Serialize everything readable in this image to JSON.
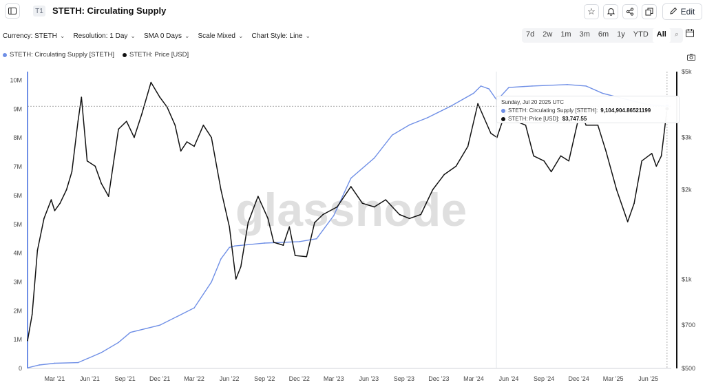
{
  "header": {
    "tab_badge": "T1",
    "title": "STETH: Circulating Supply",
    "edit_label": "Edit",
    "sidebar_toggle_icon": "sidebar-toggle-icon",
    "star_icon": "star-icon",
    "bell_icon": "bell-icon",
    "share_icon": "share-icon",
    "copy_icon": "copy-icon",
    "edit_icon": "pencil-icon"
  },
  "controls": {
    "currency": "Currency: STETH",
    "resolution": "Resolution: 1 Day",
    "sma": "SMA 0 Days",
    "scale": "Scale Mixed",
    "chart_style": "Chart Style: Line"
  },
  "ranges": [
    "7d",
    "2w",
    "1m",
    "3m",
    "6m",
    "1y",
    "YTD",
    "All"
  ],
  "active_range": "All",
  "colors": {
    "supply": "#6f8fe6",
    "price": "#111111",
    "watermark": "#d9d9d9"
  },
  "watermark": "glassnode",
  "tooltip": {
    "date": "Sunday, Jul 20 2025 UTC",
    "supply_label": "STETH: Circulating Supply [STETH]:",
    "supply_value": "9,104,904.86521199",
    "price_label": "STETH: Price [USD]:",
    "price_value": "$3,747.55"
  },
  "chart_data": {
    "type": "line",
    "series": [
      {
        "name": "STETH: Circulating Supply [STETH]",
        "axis": "left",
        "color": "#6f8fe6",
        "x": [
          "2020-12-20",
          "2021-01-20",
          "2021-03-01",
          "2021-05-01",
          "2021-07-01",
          "2021-08-15",
          "2021-09-15",
          "2021-12-01",
          "2022-01-15",
          "2022-03-01",
          "2022-04-15",
          "2022-05-10",
          "2022-06-01",
          "2022-06-15",
          "2022-09-01",
          "2022-12-01",
          "2023-01-15",
          "2023-03-01",
          "2023-04-15",
          "2023-06-15",
          "2023-08-01",
          "2023-09-15",
          "2023-11-01",
          "2024-01-01",
          "2024-03-01",
          "2024-03-20",
          "2024-04-10",
          "2024-05-01",
          "2024-06-01",
          "2024-08-01",
          "2024-11-01",
          "2024-12-20",
          "2025-02-01",
          "2025-04-15",
          "2025-06-01",
          "2025-07-20"
        ],
        "y": [
          0.02,
          0.12,
          0.18,
          0.2,
          0.55,
          0.9,
          1.25,
          1.5,
          1.8,
          2.1,
          3.0,
          3.8,
          4.2,
          4.25,
          4.35,
          4.4,
          4.5,
          5.3,
          6.6,
          7.3,
          8.1,
          8.45,
          8.7,
          9.1,
          9.55,
          9.8,
          9.7,
          9.3,
          9.75,
          9.8,
          9.85,
          9.8,
          9.55,
          9.3,
          9.15,
          9.1
        ]
      },
      {
        "name": "STETH: Price [USD]",
        "axis": "right",
        "color": "#111111",
        "x": [
          "2020-12-20",
          "2021-01-01",
          "2021-01-15",
          "2021-02-01",
          "2021-02-20",
          "2021-03-01",
          "2021-03-15",
          "2021-04-01",
          "2021-04-15",
          "2021-05-01",
          "2021-05-10",
          "2021-05-25",
          "2021-06-15",
          "2021-07-01",
          "2021-07-20",
          "2021-08-15",
          "2021-09-05",
          "2021-09-25",
          "2021-10-15",
          "2021-11-08",
          "2021-12-01",
          "2021-12-20",
          "2022-01-10",
          "2022-01-25",
          "2022-02-10",
          "2022-03-01",
          "2022-03-25",
          "2022-04-15",
          "2022-05-10",
          "2022-06-01",
          "2022-06-18",
          "2022-07-01",
          "2022-07-20",
          "2022-08-15",
          "2022-09-10",
          "2022-09-25",
          "2022-10-20",
          "2022-11-05",
          "2022-11-20",
          "2022-12-20",
          "2023-01-10",
          "2023-02-01",
          "2023-03-10",
          "2023-04-15",
          "2023-05-15",
          "2023-06-15",
          "2023-07-15",
          "2023-08-20",
          "2023-09-15",
          "2023-10-15",
          "2023-11-15",
          "2023-12-15",
          "2024-01-15",
          "2024-02-15",
          "2024-03-12",
          "2024-04-15",
          "2024-05-01",
          "2024-05-25",
          "2024-06-20",
          "2024-07-15",
          "2024-08-05",
          "2024-09-01",
          "2024-09-20",
          "2024-10-15",
          "2024-11-05",
          "2024-12-05",
          "2024-12-20",
          "2025-01-20",
          "2025-02-10",
          "2025-03-10",
          "2025-04-08",
          "2025-04-25",
          "2025-05-15",
          "2025-06-10",
          "2025-06-22",
          "2025-07-05",
          "2025-07-20"
        ],
        "y": [
          620,
          760,
          1250,
          1600,
          1850,
          1700,
          1800,
          2000,
          2300,
          3400,
          4100,
          2500,
          2400,
          2100,
          1900,
          3200,
          3400,
          3000,
          3600,
          4600,
          4100,
          3800,
          3300,
          2700,
          2900,
          2800,
          3300,
          3000,
          2000,
          1500,
          1000,
          1100,
          1550,
          1900,
          1600,
          1330,
          1300,
          1500,
          1200,
          1190,
          1550,
          1650,
          1750,
          2050,
          1800,
          1750,
          1850,
          1650,
          1600,
          1650,
          2000,
          2250,
          2400,
          2800,
          3900,
          3100,
          3000,
          3700,
          3400,
          3300,
          2600,
          2500,
          2300,
          2600,
          2500,
          3700,
          3300,
          3300,
          2700,
          2000,
          1560,
          1800,
          2500,
          2650,
          2400,
          2600,
          3747
        ]
      }
    ],
    "x_ticks": [
      "Mar '21",
      "Jun '21",
      "Sep '21",
      "Dec '21",
      "Mar '22",
      "Jun '22",
      "Sep '22",
      "Dec '22",
      "Mar '23",
      "Jun '23",
      "Sep '23",
      "Dec '23",
      "Mar '24",
      "Jun '24",
      "Sep '24",
      "Dec '24",
      "Mar '25",
      "Jun '25"
    ],
    "x_tick_dates": [
      "2021-03-01",
      "2021-06-01",
      "2021-09-01",
      "2021-12-01",
      "2022-03-01",
      "2022-06-01",
      "2022-09-01",
      "2022-12-01",
      "2023-03-01",
      "2023-06-01",
      "2023-09-01",
      "2023-12-01",
      "2024-03-01",
      "2024-06-01",
      "2024-09-01",
      "2024-12-01",
      "2025-03-01",
      "2025-06-01"
    ],
    "xlim": [
      "2020-12-20",
      "2025-07-31"
    ],
    "left_ticks": [
      "0",
      "1M",
      "2M",
      "3M",
      "4M",
      "5M",
      "6M",
      "7M",
      "8M",
      "9M",
      "10M"
    ],
    "left_values_millions": [
      0,
      1,
      2,
      3,
      4,
      5,
      6,
      7,
      8,
      9,
      10
    ],
    "ylim_left_millions": [
      0,
      10.3
    ],
    "right_ticks": [
      "$500",
      "$700",
      "$1k",
      "$2k",
      "$3k",
      "$5k"
    ],
    "right_values": [
      500,
      700,
      1000,
      2000,
      3000,
      5000
    ],
    "ylim_right": [
      500,
      5000
    ],
    "right_scale": "log",
    "grid": false,
    "legend": "top-left"
  }
}
